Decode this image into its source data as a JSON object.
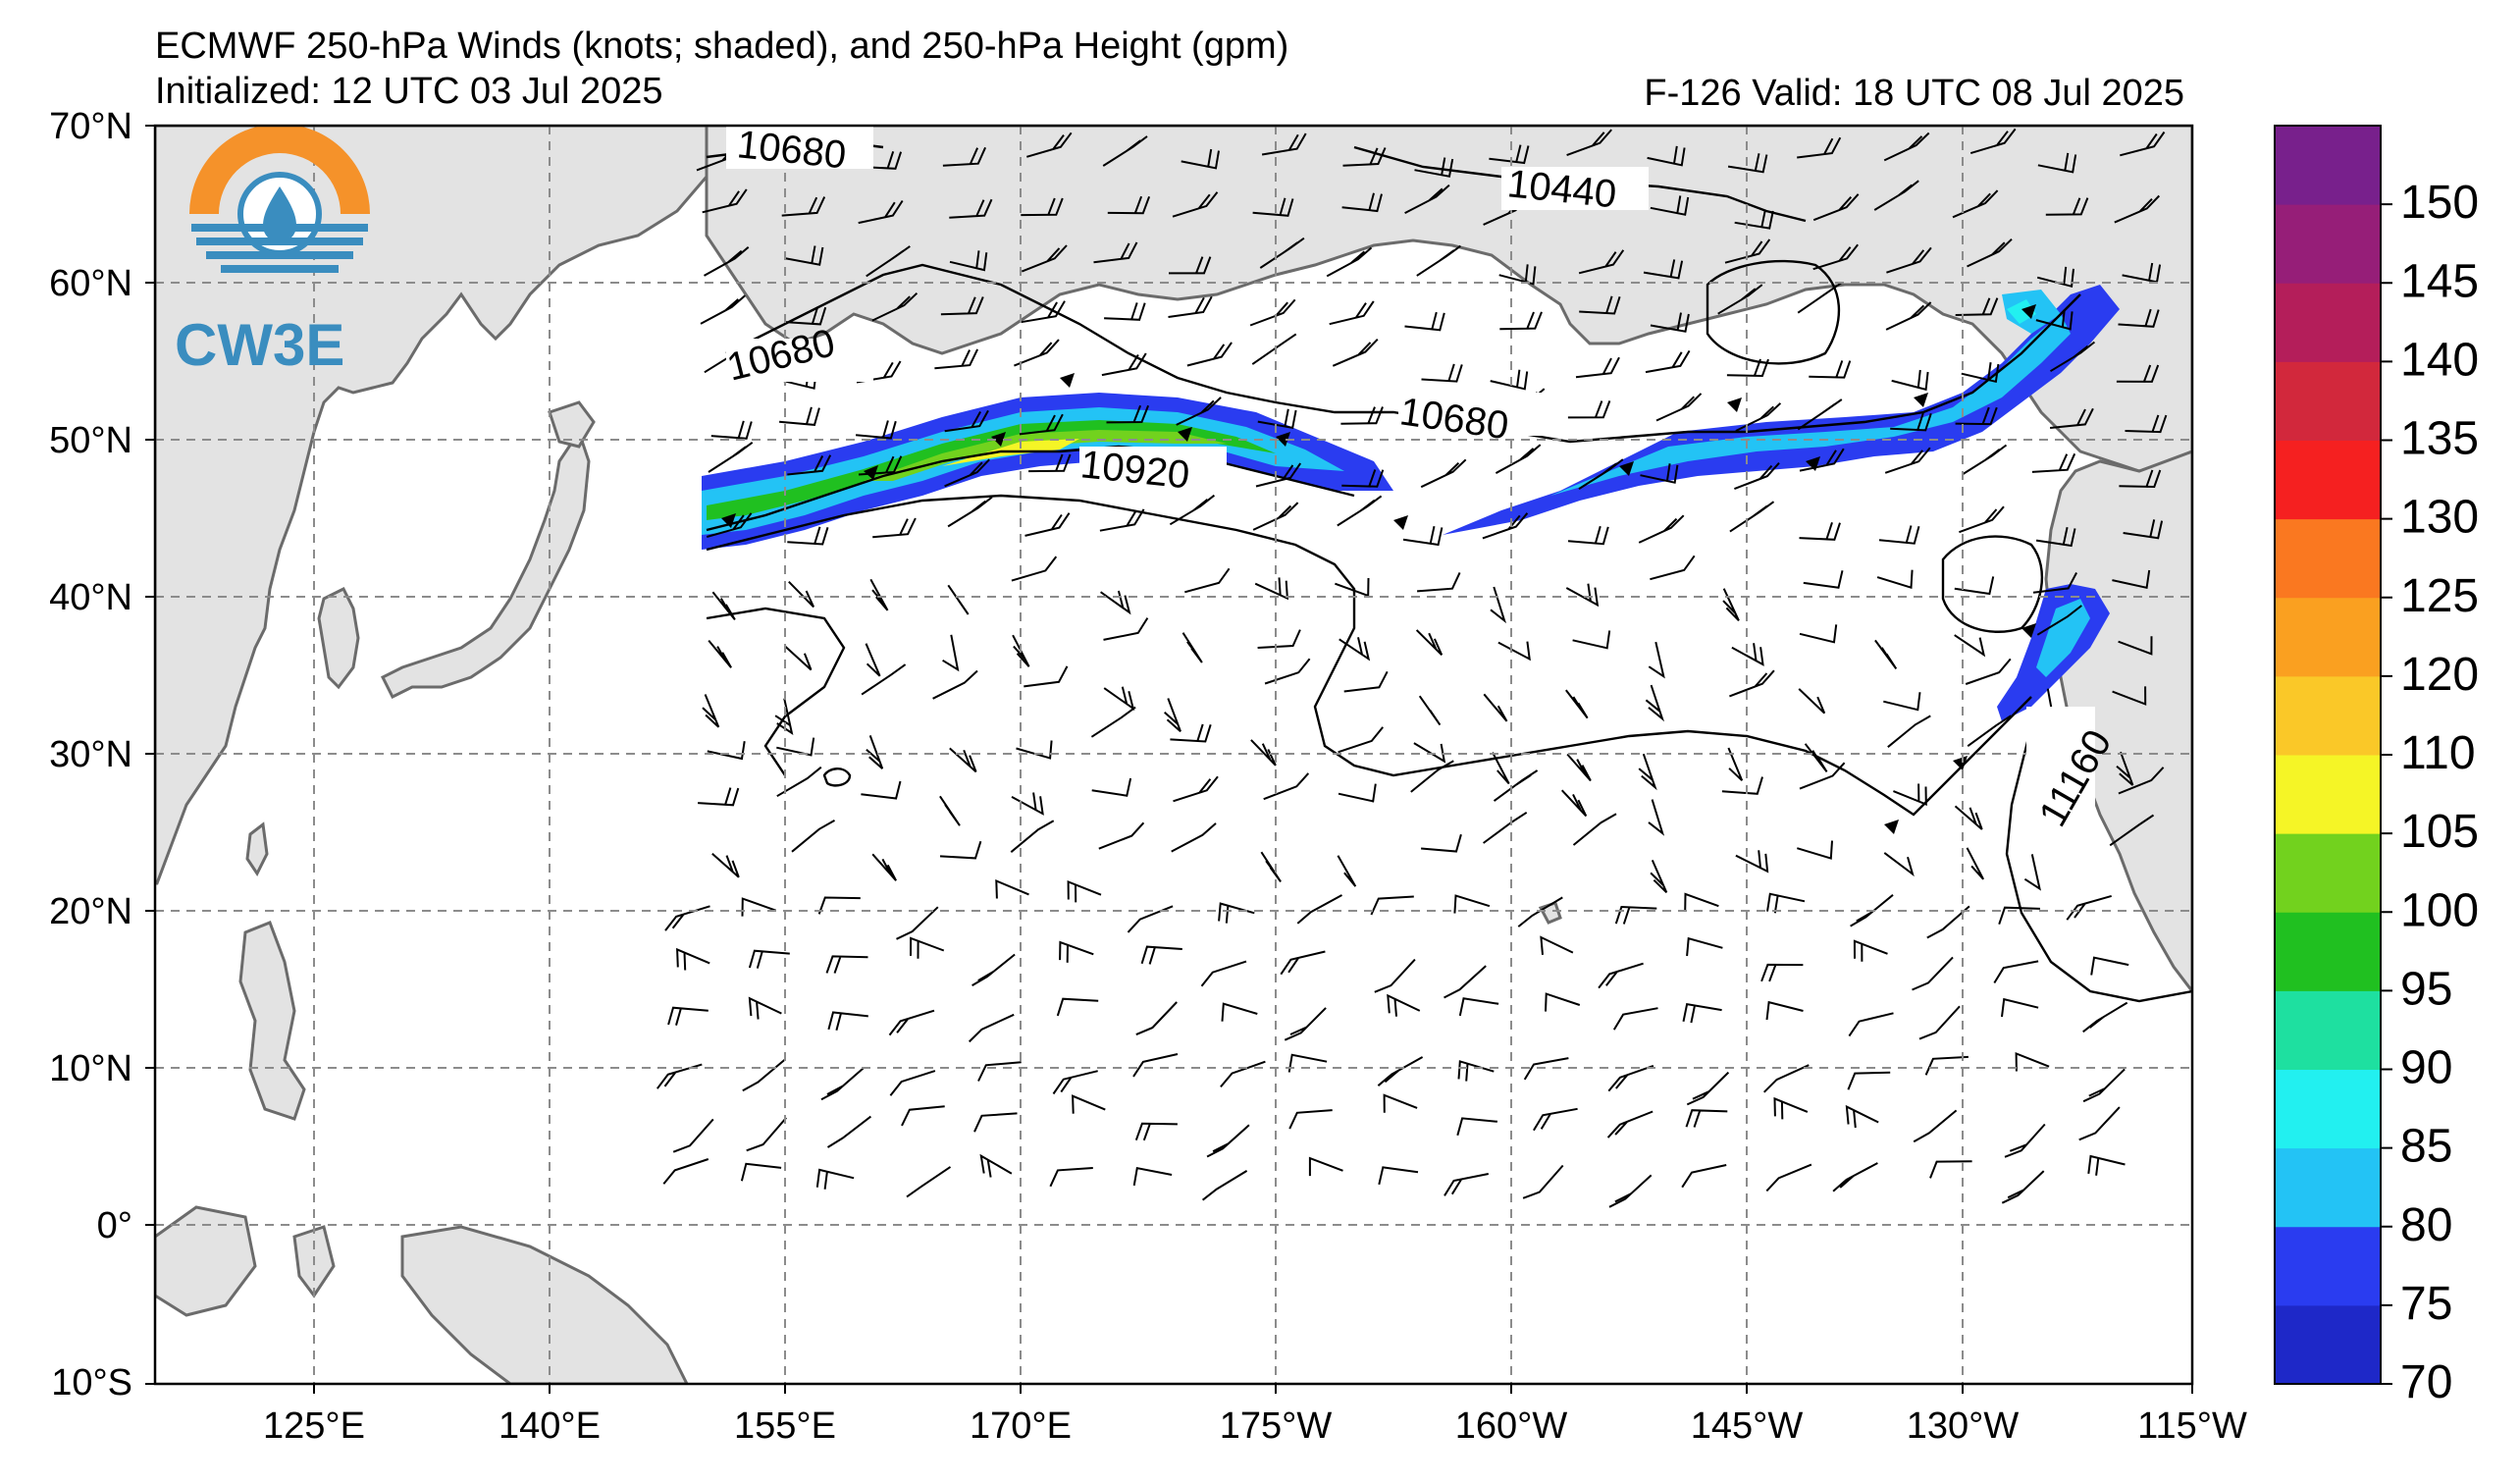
{
  "header": {
    "title": "ECMWF 250-hPa Winds (knots; shaded), and 250-hPa Height (gpm)",
    "initialized": "Initialized: 12 UTC 03 Jul 2025",
    "valid": "F-126  Valid: 18 UTC 08 Jul 2025"
  },
  "logo": {
    "text": "CW3E",
    "icon": "cw3e-logo-icon",
    "colors": {
      "orange": "#f5922a",
      "blue": "#3a8dbf"
    }
  },
  "map": {
    "land_color": "#e3e3e3",
    "coast_color": "#6b6b6b",
    "lat_labels": [
      "70°N",
      "60°N",
      "50°N",
      "40°N",
      "30°N",
      "20°N",
      "10°N",
      "0°",
      "10°S"
    ],
    "lon_labels": [
      "125°E",
      "140°E",
      "155°E",
      "170°E",
      "175°W",
      "160°W",
      "145°W",
      "130°W",
      "115°W"
    ],
    "contour_labels": [
      "10680",
      "10440",
      "10680",
      "10680",
      "10920",
      "11160"
    ]
  },
  "colorbar": {
    "labels": [
      "70",
      "75",
      "80",
      "85",
      "90",
      "95",
      "100",
      "105",
      "110",
      "120",
      "125",
      "130",
      "135",
      "140",
      "145",
      "150"
    ],
    "colors": [
      "#1e28c8",
      "#2a3cf0",
      "#23c3f5",
      "#22f0f0",
      "#1ee0a0",
      "#20c020",
      "#72d21e",
      "#f5f526",
      "#fac828",
      "#faa020",
      "#fa7820",
      "#f52020",
      "#d2283c",
      "#b41e5a",
      "#961e78",
      "#78208c"
    ]
  }
}
